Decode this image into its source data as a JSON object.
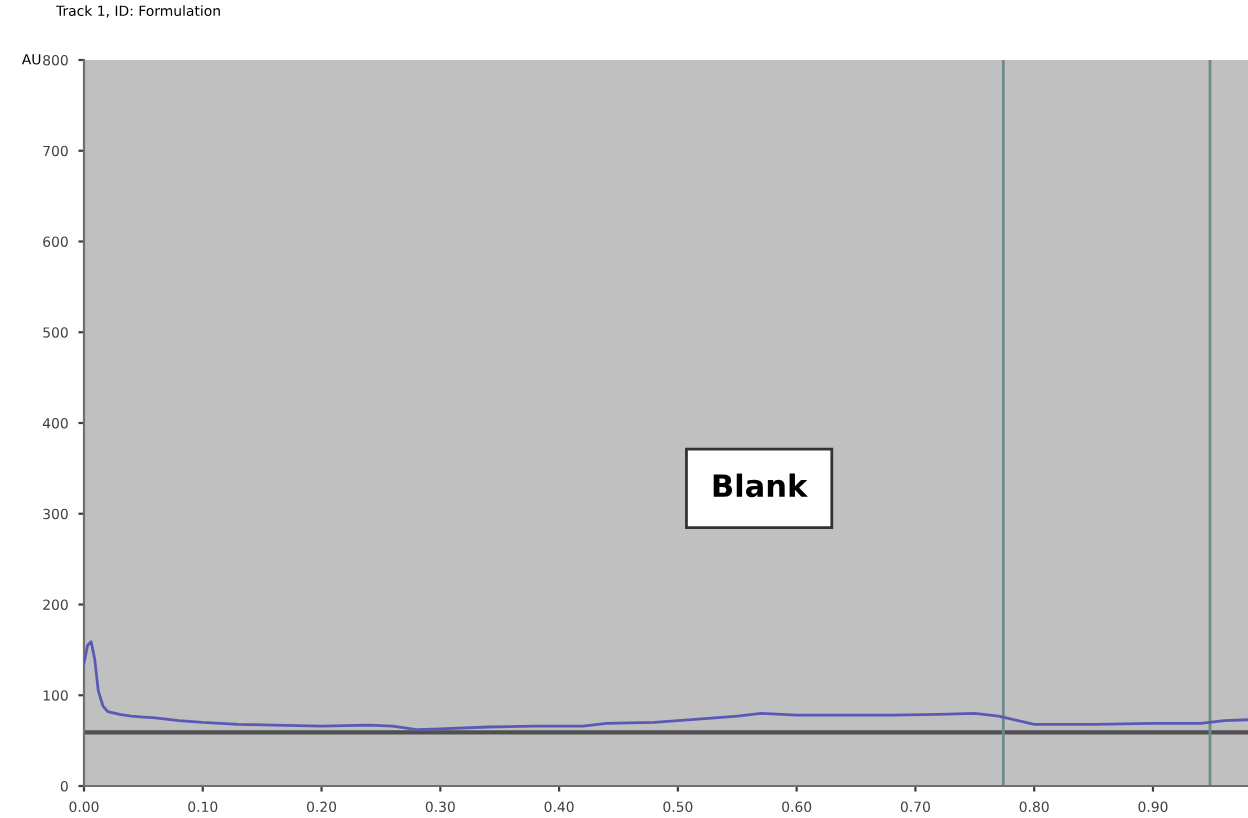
{
  "chart_data": {
    "type": "line",
    "title": "Track 1, ID: Formulation",
    "ylabel": "AU",
    "annotations": [
      "Blank"
    ],
    "x": [
      0,
      0.003,
      0.006,
      0.009,
      0.012,
      0.016,
      0.02,
      0.03,
      0.04,
      0.05,
      0.06,
      0.08,
      0.1,
      0.13,
      0.16,
      0.2,
      0.24,
      0.26,
      0.28,
      0.3,
      0.34,
      0.38,
      0.42,
      0.44,
      0.48,
      0.52,
      0.55,
      0.57,
      0.6,
      0.64,
      0.68,
      0.72,
      0.75,
      0.77,
      0.79,
      0.8,
      0.85,
      0.9,
      0.94,
      0.96,
      0.98
    ],
    "series": [
      {
        "color": "#5a5ab4",
        "values": [
          135,
          155,
          159,
          140,
          105,
          88,
          82,
          79,
          77,
          76,
          75,
          72,
          70,
          68,
          67,
          66,
          67,
          66,
          62,
          63,
          65,
          66,
          66,
          69,
          70,
          74,
          77,
          80,
          78,
          78,
          78,
          79,
          80,
          77,
          71,
          68,
          68,
          69,
          69,
          72,
          73
        ]
      }
    ],
    "xlim": [
      0,
      0.98
    ],
    "ylim": [
      0,
      800
    ],
    "xticks": [
      {
        "value": 0,
        "label": "0.00"
      },
      {
        "value": 0.1,
        "label": "0.10"
      },
      {
        "value": 0.2,
        "label": "0.20"
      },
      {
        "value": 0.3,
        "label": "0.30"
      },
      {
        "value": 0.4,
        "label": "0.40"
      },
      {
        "value": 0.5,
        "label": "0.50"
      },
      {
        "value": 0.6,
        "label": "0.60"
      },
      {
        "value": 0.7,
        "label": "0.70"
      },
      {
        "value": 0.8,
        "label": "0.80"
      },
      {
        "value": 0.9,
        "label": "0.90"
      }
    ],
    "yticks": [
      0,
      100,
      200,
      300,
      400,
      500,
      600,
      700,
      800
    ],
    "ref_lines": [
      {
        "axis": "y",
        "value": 59,
        "color": "#505050"
      },
      {
        "axis": "x",
        "value": 0.774,
        "color": "#6e8a8a"
      },
      {
        "axis": "x",
        "value": 0.948,
        "color": "#6e8a8a"
      }
    ],
    "grid": false
  }
}
